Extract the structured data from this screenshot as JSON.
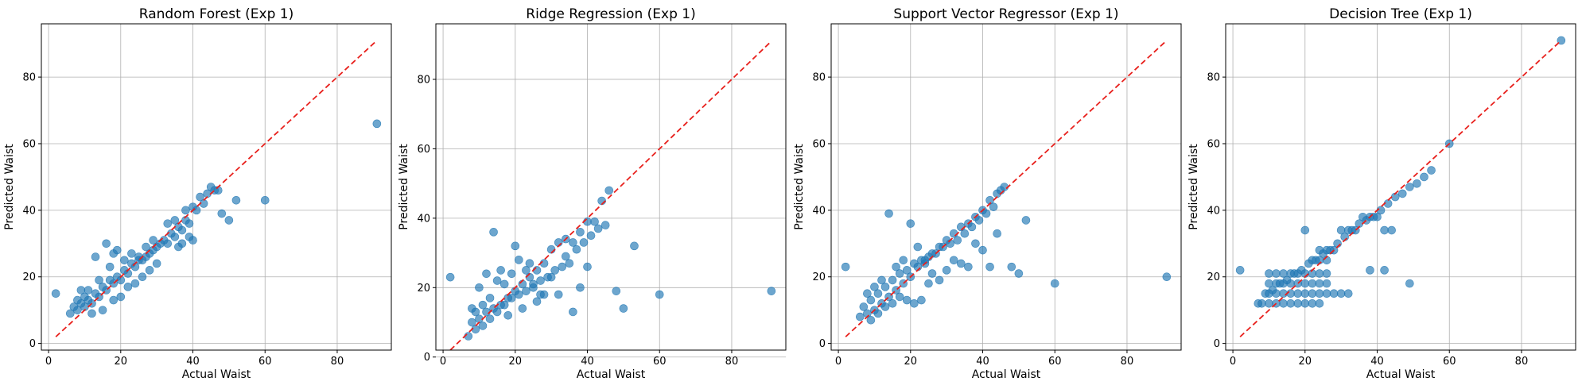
{
  "chart_data": [
    {
      "type": "scatter",
      "title": "Random Forest (Exp 1)",
      "xlabel": "Actual Waist",
      "ylabel": "Predicted Waist",
      "xlim": [
        -2,
        95
      ],
      "ylim": [
        -2,
        96
      ],
      "xticks": [
        0,
        20,
        40,
        60,
        80
      ],
      "yticks": [
        0,
        20,
        40,
        60,
        80
      ],
      "grid": true,
      "reference_line": {
        "x": [
          2,
          91
        ],
        "y": [
          2,
          91
        ],
        "color": "#e8201c",
        "style": "dashed"
      },
      "points": [
        [
          2,
          15
        ],
        [
          91,
          66
        ],
        [
          60,
          43
        ],
        [
          50,
          37
        ],
        [
          52,
          43
        ],
        [
          48,
          39
        ],
        [
          45,
          47
        ],
        [
          42,
          44
        ],
        [
          40,
          41
        ],
        [
          38,
          37
        ],
        [
          36,
          35
        ],
        [
          34,
          33
        ],
        [
          32,
          31
        ],
        [
          30,
          29
        ],
        [
          28,
          27
        ],
        [
          26,
          25
        ],
        [
          24,
          23
        ],
        [
          22,
          21
        ],
        [
          20,
          19
        ],
        [
          18,
          18
        ],
        [
          16,
          16
        ],
        [
          14,
          14
        ],
        [
          12,
          12
        ],
        [
          10,
          11
        ],
        [
          8,
          10
        ],
        [
          6,
          9
        ],
        [
          7,
          11
        ],
        [
          9,
          12
        ],
        [
          11,
          13
        ],
        [
          13,
          15
        ],
        [
          15,
          17
        ],
        [
          17,
          19
        ],
        [
          19,
          20
        ],
        [
          21,
          22
        ],
        [
          23,
          24
        ],
        [
          25,
          25
        ],
        [
          27,
          26
        ],
        [
          29,
          28
        ],
        [
          31,
          30
        ],
        [
          33,
          30
        ],
        [
          35,
          32
        ],
        [
          37,
          34
        ],
        [
          39,
          36
        ],
        [
          41,
          40
        ],
        [
          43,
          42
        ],
        [
          47,
          46
        ],
        [
          16,
          30
        ],
        [
          13,
          26
        ],
        [
          19,
          28
        ],
        [
          18,
          27
        ],
        [
          25,
          26
        ],
        [
          30,
          24
        ],
        [
          22,
          17
        ],
        [
          28,
          22
        ],
        [
          24,
          18
        ],
        [
          26,
          20
        ],
        [
          20,
          14
        ],
        [
          18,
          13
        ],
        [
          15,
          10
        ],
        [
          12,
          9
        ],
        [
          11,
          16
        ],
        [
          14,
          19
        ],
        [
          17,
          23
        ],
        [
          21,
          25
        ],
        [
          23,
          27
        ],
        [
          27,
          29
        ],
        [
          29,
          31
        ],
        [
          33,
          36
        ],
        [
          35,
          37
        ],
        [
          37,
          30
        ],
        [
          39,
          32
        ],
        [
          36,
          29
        ],
        [
          40,
          31
        ],
        [
          38,
          40
        ],
        [
          44,
          45
        ],
        [
          46,
          46
        ],
        [
          10,
          14
        ],
        [
          9,
          16
        ],
        [
          8,
          13
        ]
      ],
      "marker_color": "#1f77b4"
    },
    {
      "type": "scatter",
      "title": "Ridge Regression (Exp 1)",
      "xlabel": "Actual Waist",
      "ylabel": "Predicted Waist",
      "xlim": [
        -2,
        95
      ],
      "ylim": [
        2,
        96
      ],
      "xticks": [
        0,
        20,
        40,
        60,
        80
      ],
      "yticks": [
        0,
        20,
        40,
        60,
        80
      ],
      "grid": true,
      "reference_line": {
        "x": [
          2,
          91
        ],
        "y": [
          2,
          91
        ],
        "color": "#e8201c",
        "style": "dashed"
      },
      "points": [
        [
          2,
          23
        ],
        [
          91,
          19
        ],
        [
          60,
          18
        ],
        [
          53,
          32
        ],
        [
          50,
          14
        ],
        [
          48,
          19
        ],
        [
          46,
          48
        ],
        [
          44,
          45
        ],
        [
          42,
          39
        ],
        [
          40,
          39
        ],
        [
          38,
          36
        ],
        [
          36,
          33
        ],
        [
          34,
          29
        ],
        [
          40,
          26
        ],
        [
          38,
          20
        ],
        [
          36,
          13
        ],
        [
          32,
          18
        ],
        [
          30,
          23
        ],
        [
          28,
          27
        ],
        [
          26,
          25
        ],
        [
          24,
          23
        ],
        [
          22,
          21
        ],
        [
          20,
          19
        ],
        [
          18,
          17
        ],
        [
          16,
          15
        ],
        [
          14,
          14
        ],
        [
          12,
          13
        ],
        [
          10,
          11
        ],
        [
          8,
          10
        ],
        [
          7,
          6
        ],
        [
          9,
          8
        ],
        [
          11,
          9
        ],
        [
          13,
          11
        ],
        [
          15,
          13
        ],
        [
          17,
          15
        ],
        [
          19,
          17
        ],
        [
          21,
          18
        ],
        [
          23,
          19
        ],
        [
          25,
          21
        ],
        [
          27,
          22
        ],
        [
          29,
          23
        ],
        [
          31,
          25
        ],
        [
          33,
          26
        ],
        [
          35,
          27
        ],
        [
          37,
          31
        ],
        [
          39,
          33
        ],
        [
          41,
          35
        ],
        [
          43,
          37
        ],
        [
          45,
          38
        ],
        [
          14,
          36
        ],
        [
          20,
          32
        ],
        [
          24,
          27
        ],
        [
          30,
          31
        ],
        [
          22,
          14
        ],
        [
          18,
          12
        ],
        [
          26,
          16
        ],
        [
          28,
          18
        ],
        [
          16,
          25
        ],
        [
          12,
          24
        ],
        [
          10,
          20
        ],
        [
          8,
          14
        ],
        [
          15,
          22
        ],
        [
          19,
          24
        ],
        [
          23,
          25
        ],
        [
          25,
          20
        ],
        [
          27,
          18
        ],
        [
          21,
          28
        ],
        [
          17,
          21
        ],
        [
          13,
          17
        ],
        [
          11,
          15
        ],
        [
          9,
          13
        ],
        [
          34,
          34
        ],
        [
          32,
          33
        ]
      ],
      "marker_color": "#1f77b4"
    },
    {
      "type": "scatter",
      "title": "Support Vector Regressor (Exp 1)",
      "xlabel": "Actual Waist",
      "ylabel": "Predicted Waist",
      "xlim": [
        -2,
        95
      ],
      "ylim": [
        -2,
        96
      ],
      "xticks": [
        0,
        20,
        40,
        60,
        80
      ],
      "yticks": [
        0,
        20,
        40,
        60,
        80
      ],
      "grid": true,
      "reference_line": {
        "x": [
          2,
          91
        ],
        "y": [
          2,
          91
        ],
        "color": "#e8201c",
        "style": "dashed"
      },
      "points": [
        [
          2,
          23
        ],
        [
          91,
          20
        ],
        [
          60,
          18
        ],
        [
          52,
          37
        ],
        [
          50,
          21
        ],
        [
          48,
          23
        ],
        [
          46,
          47
        ],
        [
          44,
          45
        ],
        [
          42,
          43
        ],
        [
          40,
          40
        ],
        [
          38,
          38
        ],
        [
          36,
          36
        ],
        [
          34,
          35
        ],
        [
          32,
          33
        ],
        [
          30,
          31
        ],
        [
          28,
          29
        ],
        [
          26,
          27
        ],
        [
          24,
          25
        ],
        [
          22,
          23
        ],
        [
          20,
          20
        ],
        [
          18,
          18
        ],
        [
          16,
          16
        ],
        [
          14,
          14
        ],
        [
          12,
          12
        ],
        [
          10,
          10
        ],
        [
          8,
          9
        ],
        [
          6,
          8
        ],
        [
          7,
          11
        ],
        [
          9,
          13
        ],
        [
          11,
          15
        ],
        [
          13,
          17
        ],
        [
          15,
          19
        ],
        [
          17,
          21
        ],
        [
          19,
          22
        ],
        [
          21,
          24
        ],
        [
          23,
          25
        ],
        [
          25,
          26
        ],
        [
          27,
          27
        ],
        [
          29,
          29
        ],
        [
          31,
          30
        ],
        [
          33,
          31
        ],
        [
          35,
          33
        ],
        [
          37,
          35
        ],
        [
          39,
          37
        ],
        [
          41,
          39
        ],
        [
          43,
          41
        ],
        [
          45,
          46
        ],
        [
          14,
          39
        ],
        [
          20,
          36
        ],
        [
          22,
          29
        ],
        [
          24,
          24
        ],
        [
          26,
          21
        ],
        [
          28,
          19
        ],
        [
          30,
          22
        ],
        [
          32,
          25
        ],
        [
          34,
          24
        ],
        [
          36,
          23
        ],
        [
          38,
          30
        ],
        [
          40,
          28
        ],
        [
          42,
          23
        ],
        [
          44,
          33
        ],
        [
          25,
          18
        ],
        [
          23,
          13
        ],
        [
          21,
          12
        ],
        [
          19,
          13
        ],
        [
          17,
          14
        ],
        [
          15,
          12
        ],
        [
          13,
          11
        ],
        [
          11,
          9
        ],
        [
          9,
          7
        ],
        [
          12,
          19
        ],
        [
          16,
          23
        ],
        [
          18,
          25
        ],
        [
          10,
          17
        ],
        [
          8,
          15
        ]
      ],
      "marker_color": "#1f77b4"
    },
    {
      "type": "scatter",
      "title": "Decision Tree (Exp 1)",
      "xlabel": "Actual Waist",
      "ylabel": "Predicted Waist",
      "xlim": [
        -2,
        95
      ],
      "ylim": [
        -2,
        96
      ],
      "xticks": [
        0,
        20,
        40,
        60,
        80
      ],
      "yticks": [
        0,
        20,
        40,
        60,
        80
      ],
      "grid": true,
      "reference_line": {
        "x": [
          2,
          91
        ],
        "y": [
          2,
          91
        ],
        "color": "#e8201c",
        "style": "dashed"
      },
      "points": [
        [
          2,
          22
        ],
        [
          91,
          91
        ],
        [
          60,
          60
        ],
        [
          55,
          52
        ],
        [
          53,
          50
        ],
        [
          51,
          48
        ],
        [
          49,
          47
        ],
        [
          47,
          45
        ],
        [
          45,
          44
        ],
        [
          43,
          42
        ],
        [
          41,
          40
        ],
        [
          39,
          38
        ],
        [
          37,
          37
        ],
        [
          35,
          36
        ],
        [
          33,
          34
        ],
        [
          31,
          32
        ],
        [
          29,
          30
        ],
        [
          27,
          28
        ],
        [
          25,
          27
        ],
        [
          23,
          25
        ],
        [
          21,
          24
        ],
        [
          19,
          22
        ],
        [
          17,
          21
        ],
        [
          15,
          19
        ],
        [
          13,
          18
        ],
        [
          11,
          16
        ],
        [
          9,
          15
        ],
        [
          7,
          12
        ],
        [
          8,
          12
        ],
        [
          10,
          12
        ],
        [
          12,
          12
        ],
        [
          14,
          12
        ],
        [
          16,
          12
        ],
        [
          18,
          12
        ],
        [
          20,
          12
        ],
        [
          22,
          12
        ],
        [
          24,
          12
        ],
        [
          10,
          15
        ],
        [
          12,
          15
        ],
        [
          14,
          15
        ],
        [
          16,
          15
        ],
        [
          18,
          15
        ],
        [
          20,
          15
        ],
        [
          22,
          15
        ],
        [
          24,
          15
        ],
        [
          26,
          15
        ],
        [
          28,
          15
        ],
        [
          30,
          15
        ],
        [
          32,
          15
        ],
        [
          10,
          18
        ],
        [
          12,
          18
        ],
        [
          14,
          18
        ],
        [
          16,
          18
        ],
        [
          18,
          18
        ],
        [
          20,
          18
        ],
        [
          22,
          18
        ],
        [
          24,
          18
        ],
        [
          26,
          18
        ],
        [
          10,
          21
        ],
        [
          12,
          21
        ],
        [
          14,
          21
        ],
        [
          16,
          21
        ],
        [
          18,
          21
        ],
        [
          20,
          21
        ],
        [
          22,
          21
        ],
        [
          24,
          21
        ],
        [
          26,
          21
        ],
        [
          20,
          34
        ],
        [
          24,
          28
        ],
        [
          26,
          28
        ],
        [
          28,
          28
        ],
        [
          30,
          34
        ],
        [
          32,
          34
        ],
        [
          34,
          34
        ],
        [
          36,
          38
        ],
        [
          38,
          38
        ],
        [
          40,
          38
        ],
        [
          42,
          34
        ],
        [
          44,
          34
        ],
        [
          38,
          22
        ],
        [
          42,
          22
        ],
        [
          49,
          18
        ],
        [
          22,
          25
        ],
        [
          24,
          25
        ],
        [
          26,
          25
        ]
      ],
      "marker_color": "#1f77b4"
    }
  ]
}
